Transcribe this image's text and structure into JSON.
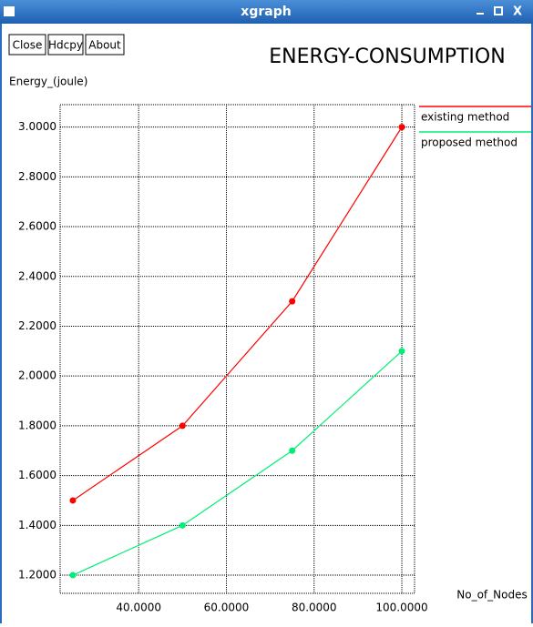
{
  "window": {
    "title": "xgraph",
    "buttons": [
      "Close",
      "Hdcpy",
      "About"
    ]
  },
  "chart_data": {
    "type": "line",
    "title": "ENERGY-CONSUMPTION",
    "y_label": "Energy_(joule)",
    "x_label": "No_of_Nodes",
    "x": [
      25,
      50,
      75,
      100
    ],
    "series": [
      {
        "name": "existing method",
        "color": "#ff0000",
        "values": [
          1.5,
          1.8,
          2.3,
          3.0
        ]
      },
      {
        "name": "proposed method",
        "color": "#00ee77",
        "values": [
          1.2,
          1.4,
          1.7,
          2.1
        ]
      }
    ],
    "xlim": [
      22.1,
      102.9
    ],
    "ylim": [
      1.127,
      3.09
    ],
    "xticks": [
      {
        "value": 40,
        "label": "40.0000"
      },
      {
        "value": 60,
        "label": "60.0000"
      },
      {
        "value": 80,
        "label": "80.0000"
      },
      {
        "value": 100,
        "label": "100.0000"
      }
    ],
    "yticks": [
      {
        "value": 1.2,
        "label": "1.2000"
      },
      {
        "value": 1.4,
        "label": "1.4000"
      },
      {
        "value": 1.6,
        "label": "1.6000"
      },
      {
        "value": 1.8,
        "label": "1.8000"
      },
      {
        "value": 2.0,
        "label": "2.0000"
      },
      {
        "value": 2.2,
        "label": "2.2000"
      },
      {
        "value": 2.4,
        "label": "2.4000"
      },
      {
        "value": 2.6,
        "label": "2.6000"
      },
      {
        "value": 2.8,
        "label": "2.8000"
      },
      {
        "value": 3.0,
        "label": "3.0000"
      }
    ],
    "grid": true,
    "legend": "right"
  }
}
